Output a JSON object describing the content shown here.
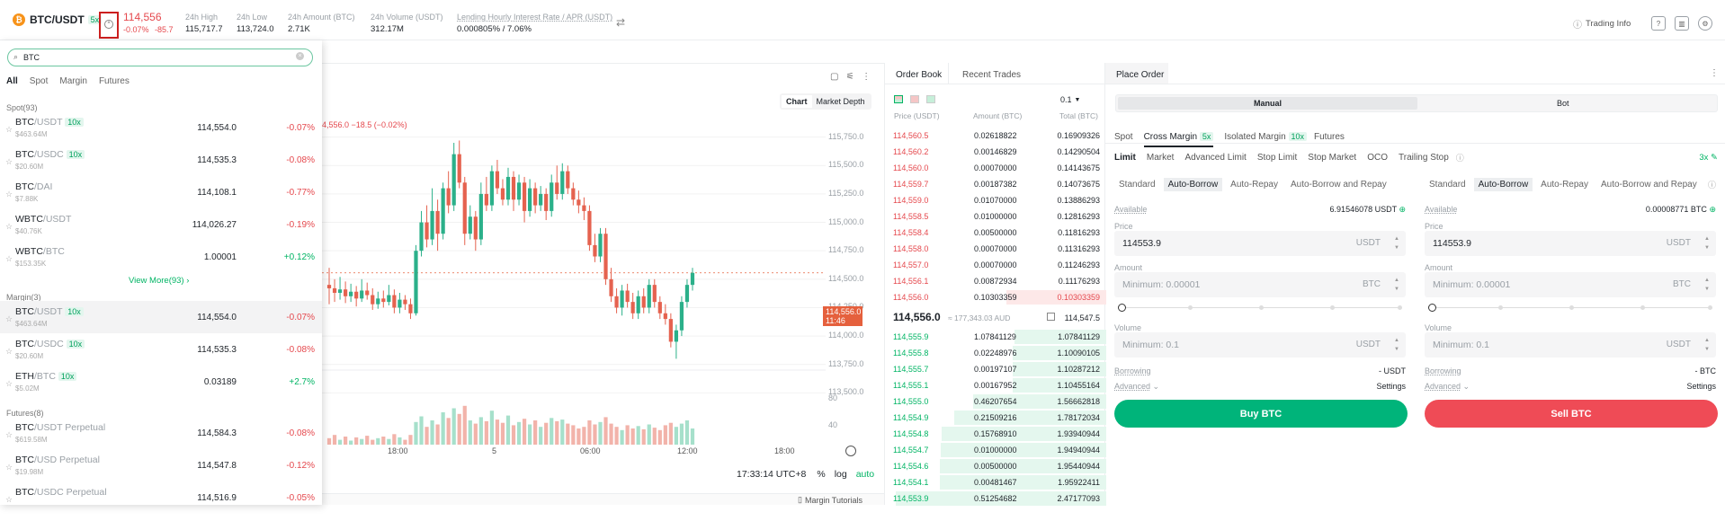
{
  "header": {
    "pair": "BTC/USDT",
    "leverage": "5x",
    "last_price": "114,556",
    "change_pct": "-0.07%",
    "change_abs": "-85.7",
    "stats": [
      {
        "label": "24h High",
        "value": "115,717.7"
      },
      {
        "label": "24h Low",
        "value": "113,724.0"
      },
      {
        "label": "24h Amount (BTC)",
        "value": "2.71K"
      },
      {
        "label": "24h Volume (USDT)",
        "value": "312.17M"
      },
      {
        "label": "Lending Hourly Interest Rate / APR (USDT)",
        "value": "0.000805% / 7.06%"
      }
    ],
    "trading_info": "Trading Info"
  },
  "search": {
    "value": "BTC"
  },
  "filter_tabs": [
    "All",
    "Spot",
    "Margin",
    "Futures"
  ],
  "spot": {
    "title": "Spot(93)",
    "rows": [
      {
        "base": "BTC",
        "quote": "/USDT",
        "badge": "10x",
        "vol": "$463.64M",
        "price": "114,554.0",
        "change": "-0.07%",
        "up": false
      },
      {
        "base": "BTC",
        "quote": "/USDC",
        "badge": "10x",
        "vol": "$20.60M",
        "price": "114,535.3",
        "change": "-0.08%",
        "up": false
      },
      {
        "base": "BTC",
        "quote": "/DAI",
        "badge": "",
        "vol": "$7.88K",
        "price": "114,108.1",
        "change": "-0.77%",
        "up": false
      },
      {
        "base": "WBTC",
        "quote": "/USDT",
        "badge": "",
        "vol": "$40.76K",
        "price": "114,026.27",
        "change": "-0.19%",
        "up": false
      },
      {
        "base": "WBTC",
        "quote": "/BTC",
        "badge": "",
        "vol": "$153.35K",
        "price": "1.00001",
        "change": "+0.12%",
        "up": true
      }
    ],
    "view_more": "View More(93) ›"
  },
  "margin": {
    "title": "Margin(3)",
    "rows": [
      {
        "base": "BTC",
        "quote": "/USDT",
        "badge": "10x",
        "vol": "$463.64M",
        "price": "114,554.0",
        "change": "-0.07%",
        "up": false
      },
      {
        "base": "BTC",
        "quote": "/USDC",
        "badge": "10x",
        "vol": "$20.60M",
        "price": "114,535.3",
        "change": "-0.08%",
        "up": false
      },
      {
        "base": "ETH",
        "quote": "/BTC",
        "badge": "10x",
        "vol": "$5.02M",
        "price": "0.03189",
        "change": "+2.7%",
        "up": true
      }
    ]
  },
  "futures": {
    "title": "Futures(8)",
    "rows": [
      {
        "base": "BTC",
        "quote": "/USDT Perpetual",
        "badge": "",
        "vol": "$619.58M",
        "price": "114,584.3",
        "change": "-0.08%",
        "up": false
      },
      {
        "base": "BTC",
        "quote": "/USD Perpetual",
        "badge": "",
        "vol": "$19.98M",
        "price": "114,547.8",
        "change": "-0.12%",
        "up": false
      },
      {
        "base": "BTC",
        "quote": "/USDC Perpetual",
        "badge": "",
        "vol": "",
        "price": "114,516.9",
        "change": "-0.05%",
        "up": false
      }
    ]
  },
  "chart": {
    "view_tabs": [
      "Chart",
      "Market Depth"
    ],
    "ohlc_text": "4,556.0 −18.5 (−0.02%)",
    "price_ticks": [
      "115,750.0",
      "115,500.0",
      "115,250.0",
      "115,000.0",
      "114,750.0",
      "114,500.0",
      "114,250.0",
      "114,000.0",
      "113,750.0",
      "113,500.0"
    ],
    "volume_ticks": [
      "80",
      "40"
    ],
    "time_ticks": [
      "18:00",
      "5",
      "06:00",
      "12:00",
      "18:00"
    ],
    "current_price_tag": "114,556.0",
    "countdown": "11:46",
    "clock": "17:33:14 UTC+8",
    "opt_pct": "%",
    "opt_log": "log",
    "opt_auto": "auto",
    "margin_tutorials": "Margin Tutorials"
  },
  "chart_data": {
    "type": "candlestick",
    "ylim": [
      113400,
      115850
    ],
    "candles": [
      [
        114450,
        114420,
        114600,
        114280
      ],
      [
        114420,
        114380,
        114500,
        114300
      ],
      [
        114380,
        114410,
        114520,
        114320
      ],
      [
        114410,
        114350,
        114480,
        114290
      ],
      [
        114350,
        114390,
        114460,
        114300
      ],
      [
        114390,
        114330,
        114440,
        114260
      ],
      [
        114330,
        114400,
        114500,
        114300
      ],
      [
        114400,
        114360,
        114470,
        114320
      ],
      [
        114360,
        114280,
        114420,
        114230
      ],
      [
        114280,
        114330,
        114390,
        114240
      ],
      [
        114330,
        114300,
        114400,
        114250
      ],
      [
        114300,
        114360,
        114450,
        114270
      ],
      [
        114360,
        114250,
        114410,
        114200
      ],
      [
        114250,
        114320,
        114380,
        114200
      ],
      [
        114320,
        114280,
        114360,
        114230
      ],
      [
        114280,
        114200,
        114330,
        114150
      ],
      [
        114200,
        114750,
        114800,
        114180
      ],
      [
        114750,
        115000,
        115100,
        114700
      ],
      [
        115000,
        114850,
        115150,
        114780
      ],
      [
        114850,
        115100,
        115300,
        114800
      ],
      [
        115100,
        114900,
        115200,
        114750
      ],
      [
        114900,
        115300,
        115350,
        114850
      ],
      [
        115300,
        115150,
        115450,
        115080
      ],
      [
        115150,
        115600,
        115700,
        115100
      ],
      [
        115600,
        115350,
        115720,
        115300
      ],
      [
        115350,
        114900,
        115400,
        114800
      ],
      [
        114900,
        115050,
        115150,
        114850
      ],
      [
        115050,
        114850,
        115100,
        114750
      ],
      [
        114850,
        115250,
        115350,
        114800
      ],
      [
        115250,
        115150,
        115400,
        115100
      ],
      [
        115150,
        115450,
        115500,
        115100
      ],
      [
        115450,
        115300,
        115550,
        115250
      ],
      [
        115300,
        115200,
        115380,
        115150
      ],
      [
        115200,
        115400,
        115480,
        115150
      ],
      [
        115400,
        115200,
        115450,
        115100
      ],
      [
        115200,
        115350,
        115420,
        115150
      ],
      [
        115350,
        115100,
        115400,
        115000
      ],
      [
        115100,
        115300,
        115380,
        115050
      ],
      [
        115300,
        115150,
        115350,
        115080
      ],
      [
        115150,
        115250,
        115320,
        115100
      ],
      [
        115250,
        115100,
        115300,
        115020
      ],
      [
        115100,
        115350,
        115420,
        115050
      ],
      [
        115350,
        115250,
        115500,
        115200
      ],
      [
        115250,
        115450,
        115520,
        115200
      ],
      [
        115450,
        115300,
        115500,
        115250
      ],
      [
        115300,
        115200,
        115350,
        115150
      ],
      [
        115200,
        115150,
        115280,
        115080
      ],
      [
        115150,
        115100,
        115220,
        115020
      ],
      [
        115100,
        114800,
        115150,
        114750
      ],
      [
        114800,
        114700,
        114900,
        114650
      ],
      [
        114700,
        114900,
        114950,
        114650
      ],
      [
        114900,
        114500,
        114950,
        114450
      ],
      [
        114500,
        114350,
        114600,
        114300
      ],
      [
        114350,
        114250,
        114420,
        114200
      ],
      [
        114250,
        114400,
        114450,
        114180
      ],
      [
        114400,
        114300,
        114460,
        114250
      ],
      [
        114300,
        114200,
        114380,
        114150
      ],
      [
        114200,
        114350,
        114400,
        114150
      ],
      [
        114350,
        114250,
        114420,
        114200
      ],
      [
        114250,
        114450,
        114500,
        114200
      ],
      [
        114450,
        114300,
        114500,
        114250
      ],
      [
        114300,
        114200,
        114350,
        114150
      ],
      [
        114200,
        114150,
        114280,
        114100
      ],
      [
        114150,
        113950,
        114200,
        113900
      ],
      [
        113950,
        114050,
        114100,
        113800
      ],
      [
        114050,
        114300,
        114350,
        114000
      ],
      [
        114300,
        114450,
        114500,
        114250
      ],
      [
        114450,
        114556,
        114600,
        114400
      ]
    ],
    "volumes": [
      8,
      12,
      6,
      10,
      5,
      9,
      7,
      11,
      6,
      8,
      10,
      7,
      13,
      9,
      6,
      12,
      28,
      35,
      22,
      30,
      25,
      40,
      33,
      45,
      38,
      48,
      30,
      26,
      34,
      29,
      42,
      31,
      27,
      36,
      24,
      28,
      32,
      25,
      30,
      22,
      27,
      33,
      29,
      31,
      26,
      24,
      20,
      22,
      30,
      25,
      28,
      34,
      26,
      22,
      18,
      24,
      20,
      23,
      19,
      25,
      21,
      18,
      24,
      27,
      22,
      26,
      30,
      20
    ],
    "current_price": 114556.0
  },
  "orderbook": {
    "tabs": [
      "Order Book",
      "Recent Trades"
    ],
    "precision": "0.1",
    "columns": [
      "Price (USDT)",
      "Amount (BTC)",
      "Total (BTC)"
    ],
    "asks": [
      [
        "114,560.5",
        "0.02618822",
        "0.16909326"
      ],
      [
        "114,560.2",
        "0.00146829",
        "0.14290504"
      ],
      [
        "114,560.0",
        "0.00070000",
        "0.14143675"
      ],
      [
        "114,559.7",
        "0.00187382",
        "0.14073675"
      ],
      [
        "114,559.0",
        "0.01070000",
        "0.13886293"
      ],
      [
        "114,558.5",
        "0.01000000",
        "0.12816293"
      ],
      [
        "114,558.4",
        "0.00500000",
        "0.11816293"
      ],
      [
        "114,558.0",
        "0.00070000",
        "0.11316293"
      ],
      [
        "114,557.0",
        "0.00070000",
        "0.11246293"
      ],
      [
        "114,556.1",
        "0.00872934",
        "0.11176293"
      ],
      [
        "114,556.0",
        "0.10303359",
        "0.10303359"
      ]
    ],
    "mid_price": "114,556.0",
    "mid_fiat": "≈ 177,343.03 AUD",
    "mid_right": "114,547.5",
    "bids": [
      [
        "114,555.9",
        "1.07841129",
        "1.07841129"
      ],
      [
        "114,555.8",
        "0.02248976",
        "1.10090105"
      ],
      [
        "114,555.7",
        "0.00197107",
        "1.10287212"
      ],
      [
        "114,555.1",
        "0.00167952",
        "1.10455164"
      ],
      [
        "114,555.0",
        "0.46207654",
        "1.56662818"
      ],
      [
        "114,554.9",
        "0.21509216",
        "1.78172034"
      ],
      [
        "114,554.8",
        "0.15768910",
        "1.93940944"
      ],
      [
        "114,554.7",
        "0.01000000",
        "1.94940944"
      ],
      [
        "114,554.6",
        "0.00500000",
        "1.95440944"
      ],
      [
        "114,554.1",
        "0.00481467",
        "1.95922411"
      ],
      [
        "114,553.9",
        "0.51254682",
        "2.47177093"
      ]
    ]
  },
  "order": {
    "title": "Place Order",
    "modes": [
      "Manual",
      "Bot"
    ],
    "account_tabs": [
      {
        "label": "Spot",
        "badge": ""
      },
      {
        "label": "Cross Margin",
        "badge": "5x"
      },
      {
        "label": "Isolated Margin",
        "badge": "10x"
      },
      {
        "label": "Futures",
        "badge": ""
      }
    ],
    "types": [
      "Limit",
      "Market",
      "Advanced Limit",
      "Stop Limit",
      "Stop Market",
      "OCO",
      "Trailing Stop"
    ],
    "leverage": "3x",
    "borrow_modes": [
      "Standard",
      "Auto-Borrow",
      "Auto-Repay",
      "Auto-Borrow and Repay"
    ],
    "buy": {
      "available_label": "Available",
      "available": "6.91546078 USDT",
      "price_label": "Price",
      "price": "114553.9",
      "price_unit": "USDT",
      "amount_label": "Amount",
      "amount_placeholder": "Minimum: 0.00001",
      "amount_unit": "BTC",
      "volume_label": "Volume",
      "volume_placeholder": "Minimum: 0.1",
      "volume_unit": "USDT",
      "borrowing_label": "Borrowing",
      "borrowing": "- USDT",
      "advanced": "Advanced",
      "settings": "Settings",
      "button": "Buy BTC"
    },
    "sell": {
      "available_label": "Available",
      "available": "0.00008771 BTC",
      "price_label": "Price",
      "price": "114553.9",
      "price_unit": "USDT",
      "amount_label": "Amount",
      "amount_placeholder": "Minimum: 0.00001",
      "amount_unit": "BTC",
      "volume_label": "Volume",
      "volume_placeholder": "Minimum: 0.1",
      "volume_unit": "USDT",
      "borrowing_label": "Borrowing",
      "borrowing": "- BTC",
      "advanced": "Advanced",
      "settings": "Settings",
      "button": "Sell BTC"
    }
  },
  "colors": {
    "up": "#00b464",
    "down": "#e5484d",
    "buy": "#00b47a",
    "sell": "#ef4b56",
    "accent": "#00b464"
  }
}
